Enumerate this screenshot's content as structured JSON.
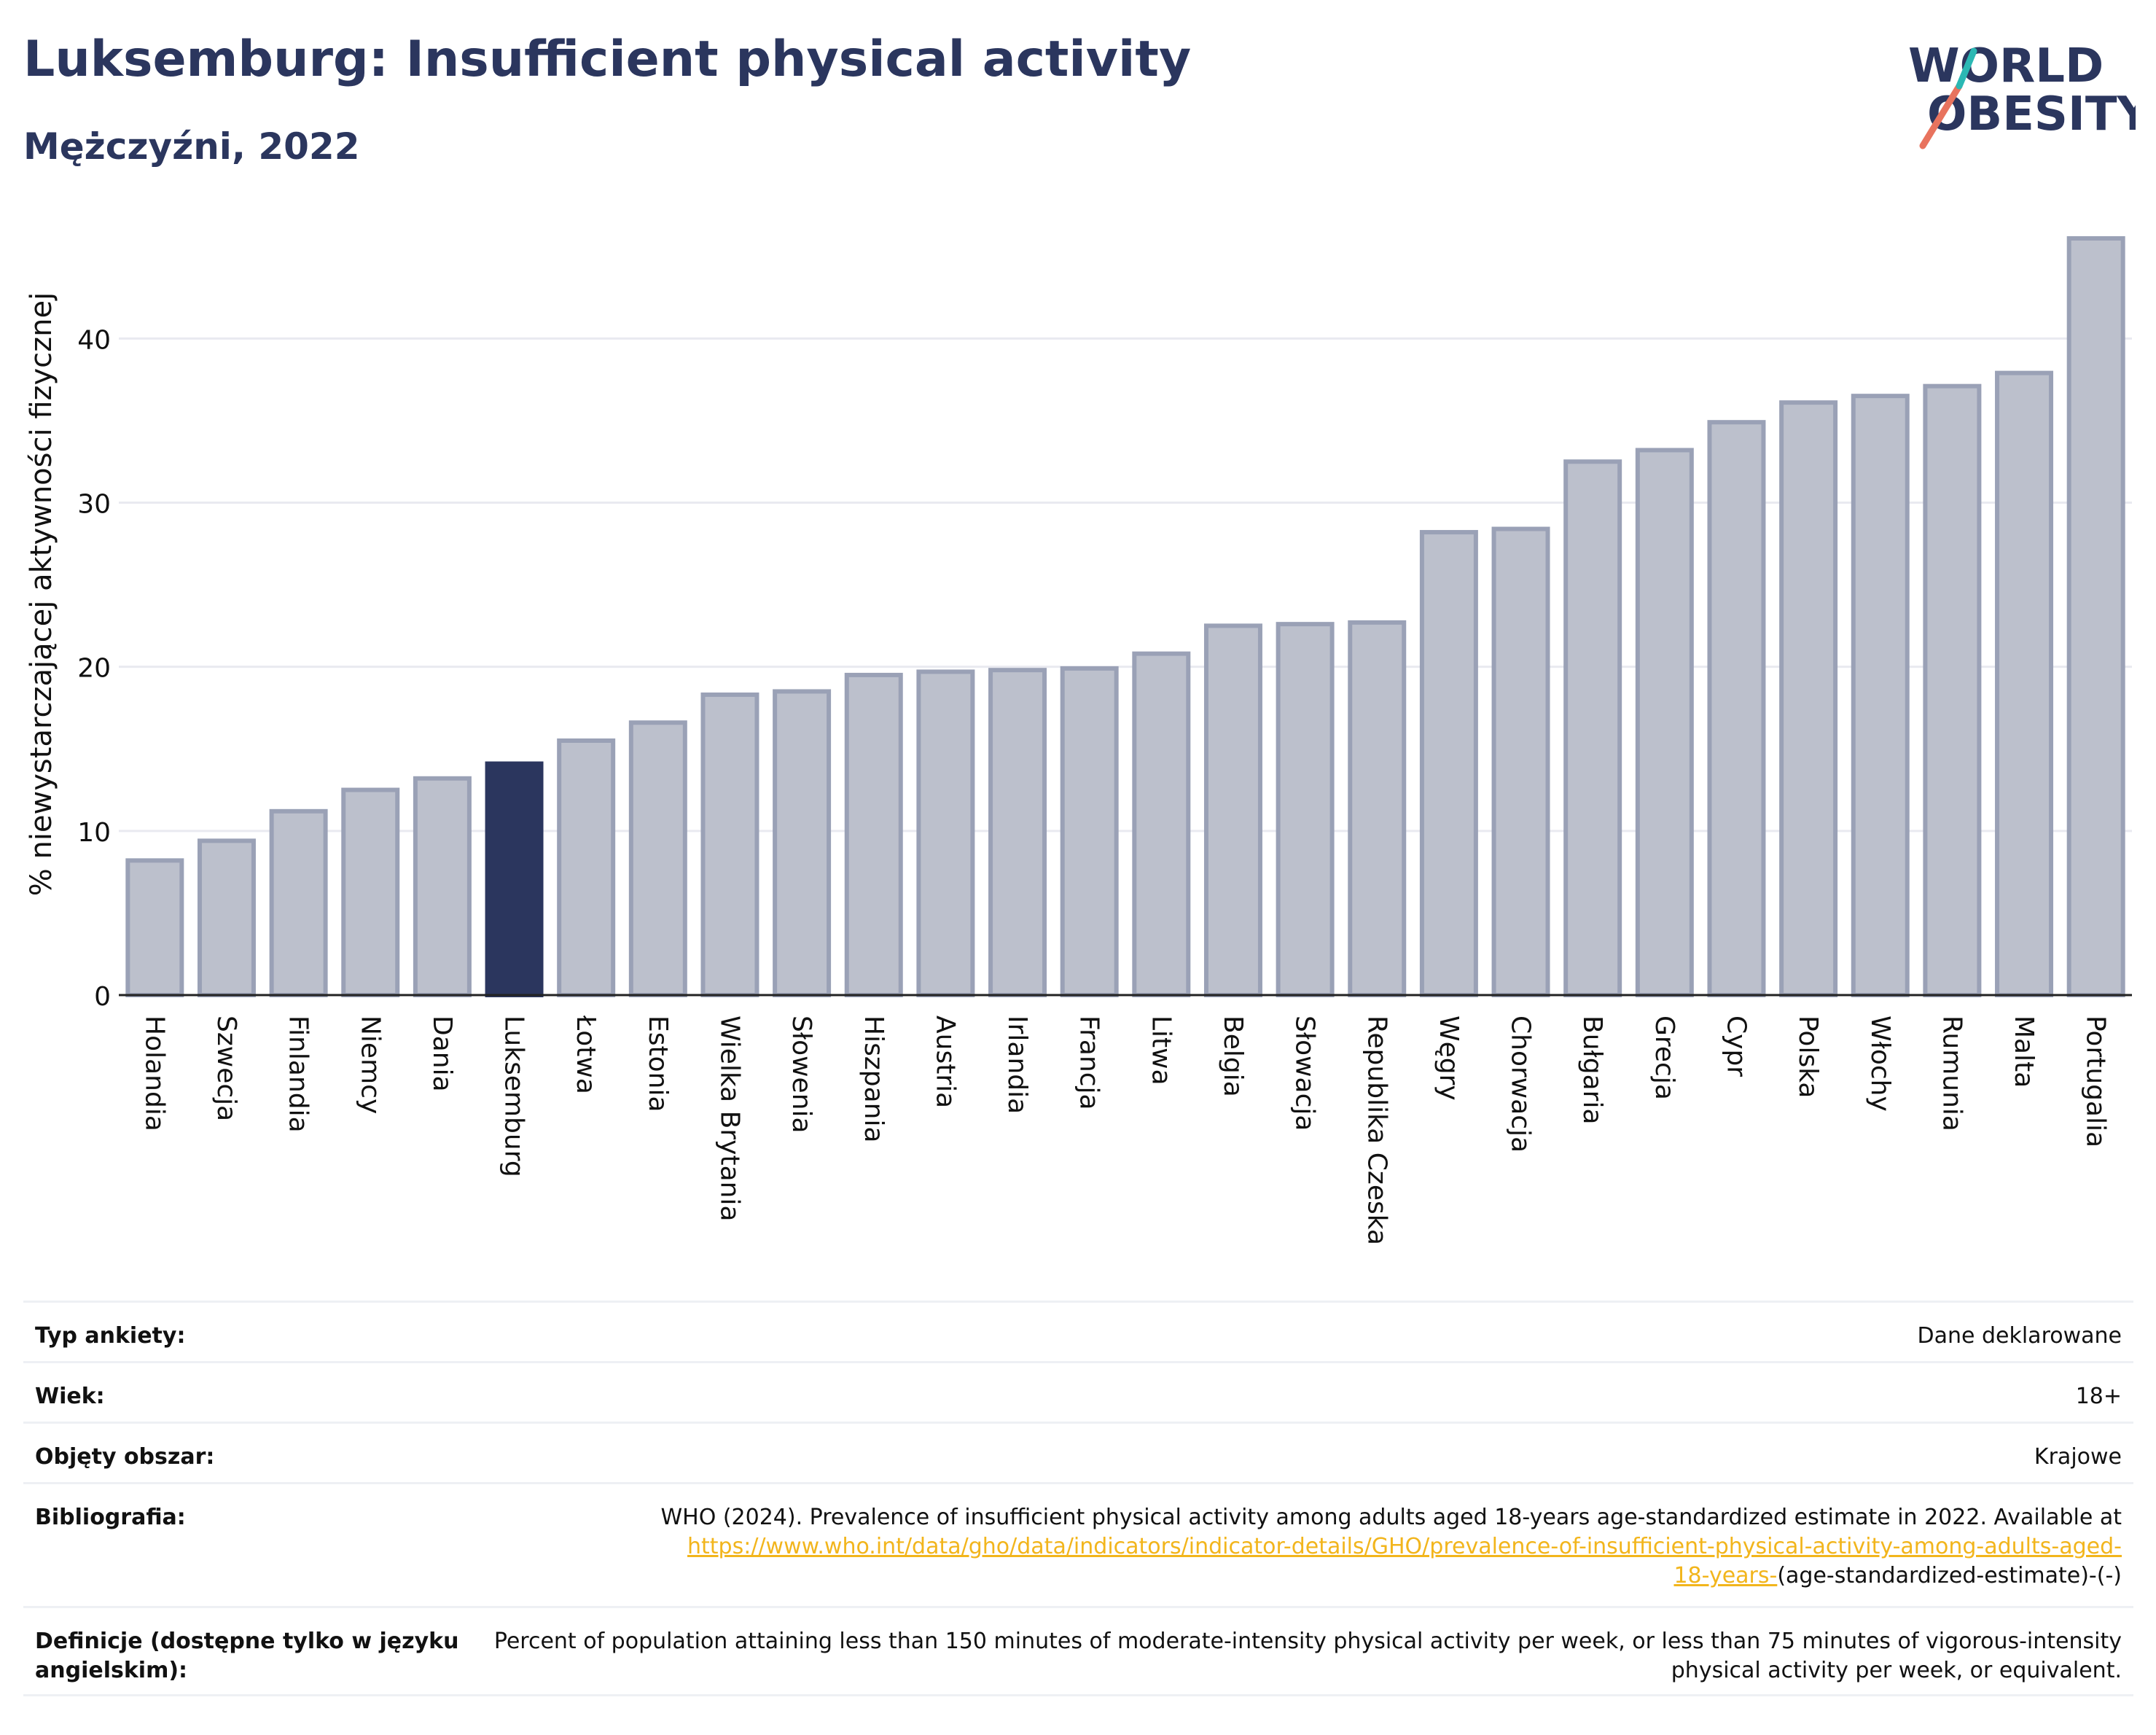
{
  "header": {
    "title": "Luksemburg: Insufficient physical activity",
    "subtitle": "Mężczyźni, 2022"
  },
  "logo": {
    "line1": "WORLD",
    "line2": "OBESITY"
  },
  "colors": {
    "highlight": "#2b365e",
    "bar_fill": "#bcc0cc",
    "bar_stroke": "#9aa1b6",
    "title": "#2b365e",
    "link": "#f2b51c",
    "logo_slash_teal": "#2bb8b4",
    "logo_slash_coral": "#e8735e"
  },
  "chart_data": {
    "type": "bar",
    "ylabel": "% niewystarczającej aktywności fizycznej",
    "xlabel": "",
    "ylim": [
      0,
      46.5
    ],
    "yticks": [
      0,
      10,
      20,
      30,
      40
    ],
    "grid": true,
    "highlight": "Luksemburg",
    "categories": [
      "Holandia",
      "Szwecja",
      "Finlandia",
      "Niemcy",
      "Dania",
      "Luksemburg",
      "Łotwa",
      "Estonia",
      "Wielka Brytania",
      "Słowenia",
      "Hiszpania",
      "Austria",
      "Irlandia",
      "Francja",
      "Litwa",
      "Belgia",
      "Słowacja",
      "Republika Czeska",
      "Węgry",
      "Chorwacja",
      "Bułgaria",
      "Grecja",
      "Cypr",
      "Polska",
      "Włochy",
      "Rumunia",
      "Malta",
      "Portugalia"
    ],
    "values": [
      8.2,
      9.4,
      11.2,
      12.5,
      13.2,
      14.1,
      15.5,
      16.6,
      18.3,
      18.5,
      19.5,
      19.7,
      19.8,
      19.9,
      20.8,
      22.5,
      22.6,
      22.7,
      28.2,
      28.4,
      32.5,
      33.2,
      34.9,
      36.1,
      36.5,
      37.1,
      37.9,
      46.1
    ]
  },
  "info": {
    "rows": [
      {
        "label": "Typ ankiety:",
        "value": "Dane deklarowane"
      },
      {
        "label": "Wiek:",
        "value": "18+"
      },
      {
        "label": "Objęty obszar:",
        "value": "Krajowe"
      }
    ],
    "bibliography": {
      "label": "Bibliografia:",
      "text_before": "WHO (2024). Prevalence of insufficient physical activity among adults aged 18-years age-standardized estimate in 2022. Available at",
      "link_line1": "https://www.who.int/data/gho/data/indicators/indicator-details/GHO/prevalence-of-insufficient-physical-activity-among-adults-aged-",
      "link_line2": "18-years-",
      "text_after": "(age-standardized-estimate)-(-)"
    },
    "definition": {
      "label": "Definicje (dostępne tylko w języku angielskim):",
      "text": "Percent of population attaining less than 150 minutes of moderate-intensity physical activity per week, or less than 75 minutes of vigorous-intensity physical activity per week, or equivalent."
    }
  }
}
